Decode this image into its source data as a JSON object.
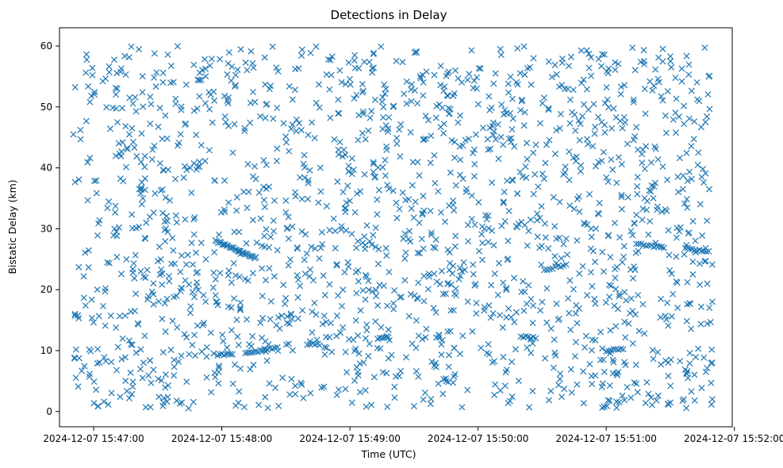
{
  "chart_data": {
    "type": "scatter",
    "title": "Detections in Delay",
    "xlabel": "Time (UTC)",
    "ylabel": "Bistatic Delay (km)",
    "marker": "x",
    "color": "#1f77b4",
    "grid": false,
    "xlim": [
      "2024-12-07 15:46:44",
      "2024-12-07 15:51:59"
    ],
    "ylim": [
      -2.5,
      63
    ],
    "xticks": [
      "2024-12-07 15:47:00",
      "2024-12-07 15:48:00",
      "2024-12-07 15:49:00",
      "2024-12-07 15:50:00",
      "2024-12-07 15:51:00",
      "2024-12-07 15:52:00"
    ],
    "yticks": [
      0,
      10,
      20,
      30,
      40,
      50,
      60
    ],
    "tracks": [
      {
        "start": {
          "x": "2024-12-07 15:47:57",
          "y": 28.0
        },
        "end": {
          "x": "2024-12-07 15:48:16",
          "y": 25.2
        },
        "count": 30
      },
      {
        "start": {
          "x": "2024-12-07 15:47:58",
          "y": 9.3
        },
        "end": {
          "x": "2024-12-07 15:48:05",
          "y": 9.5
        },
        "count": 8
      },
      {
        "start": {
          "x": "2024-12-07 15:48:11",
          "y": 9.7
        },
        "end": {
          "x": "2024-12-07 15:48:20",
          "y": 10.0
        },
        "count": 10
      },
      {
        "start": {
          "x": "2024-12-07 15:48:20",
          "y": 10.2
        },
        "end": {
          "x": "2024-12-07 15:48:26",
          "y": 10.4
        },
        "count": 6
      },
      {
        "start": {
          "x": "2024-12-07 15:48:40",
          "y": 11.0
        },
        "end": {
          "x": "2024-12-07 15:48:45",
          "y": 11.1
        },
        "count": 5
      },
      {
        "start": {
          "x": "2024-12-07 15:49:13",
          "y": 12.0
        },
        "end": {
          "x": "2024-12-07 15:49:18",
          "y": 12.2
        },
        "count": 6
      },
      {
        "start": {
          "x": "2024-12-07 15:50:20",
          "y": 12.3
        },
        "end": {
          "x": "2024-12-07 15:50:27",
          "y": 12.1
        },
        "count": 7
      },
      {
        "start": {
          "x": "2024-12-07 15:50:31",
          "y": 23.2
        },
        "end": {
          "x": "2024-12-07 15:50:40",
          "y": 24.0
        },
        "count": 8
      },
      {
        "start": {
          "x": "2024-12-07 15:51:00",
          "y": 10.0
        },
        "end": {
          "x": "2024-12-07 15:51:08",
          "y": 10.3
        },
        "count": 8
      },
      {
        "start": {
          "x": "2024-12-07 15:51:14",
          "y": 27.5
        },
        "end": {
          "x": "2024-12-07 15:51:27",
          "y": 26.9
        },
        "count": 12
      },
      {
        "start": {
          "x": "2024-12-07 15:51:37",
          "y": 26.8
        },
        "end": {
          "x": "2024-12-07 15:51:48",
          "y": 26.2
        },
        "count": 11
      }
    ],
    "clutter": {
      "x_range": [
        "2024-12-07 15:46:50",
        "2024-12-07 15:51:50"
      ],
      "y_range": [
        0.5,
        60.0
      ],
      "count": 1750
    }
  }
}
